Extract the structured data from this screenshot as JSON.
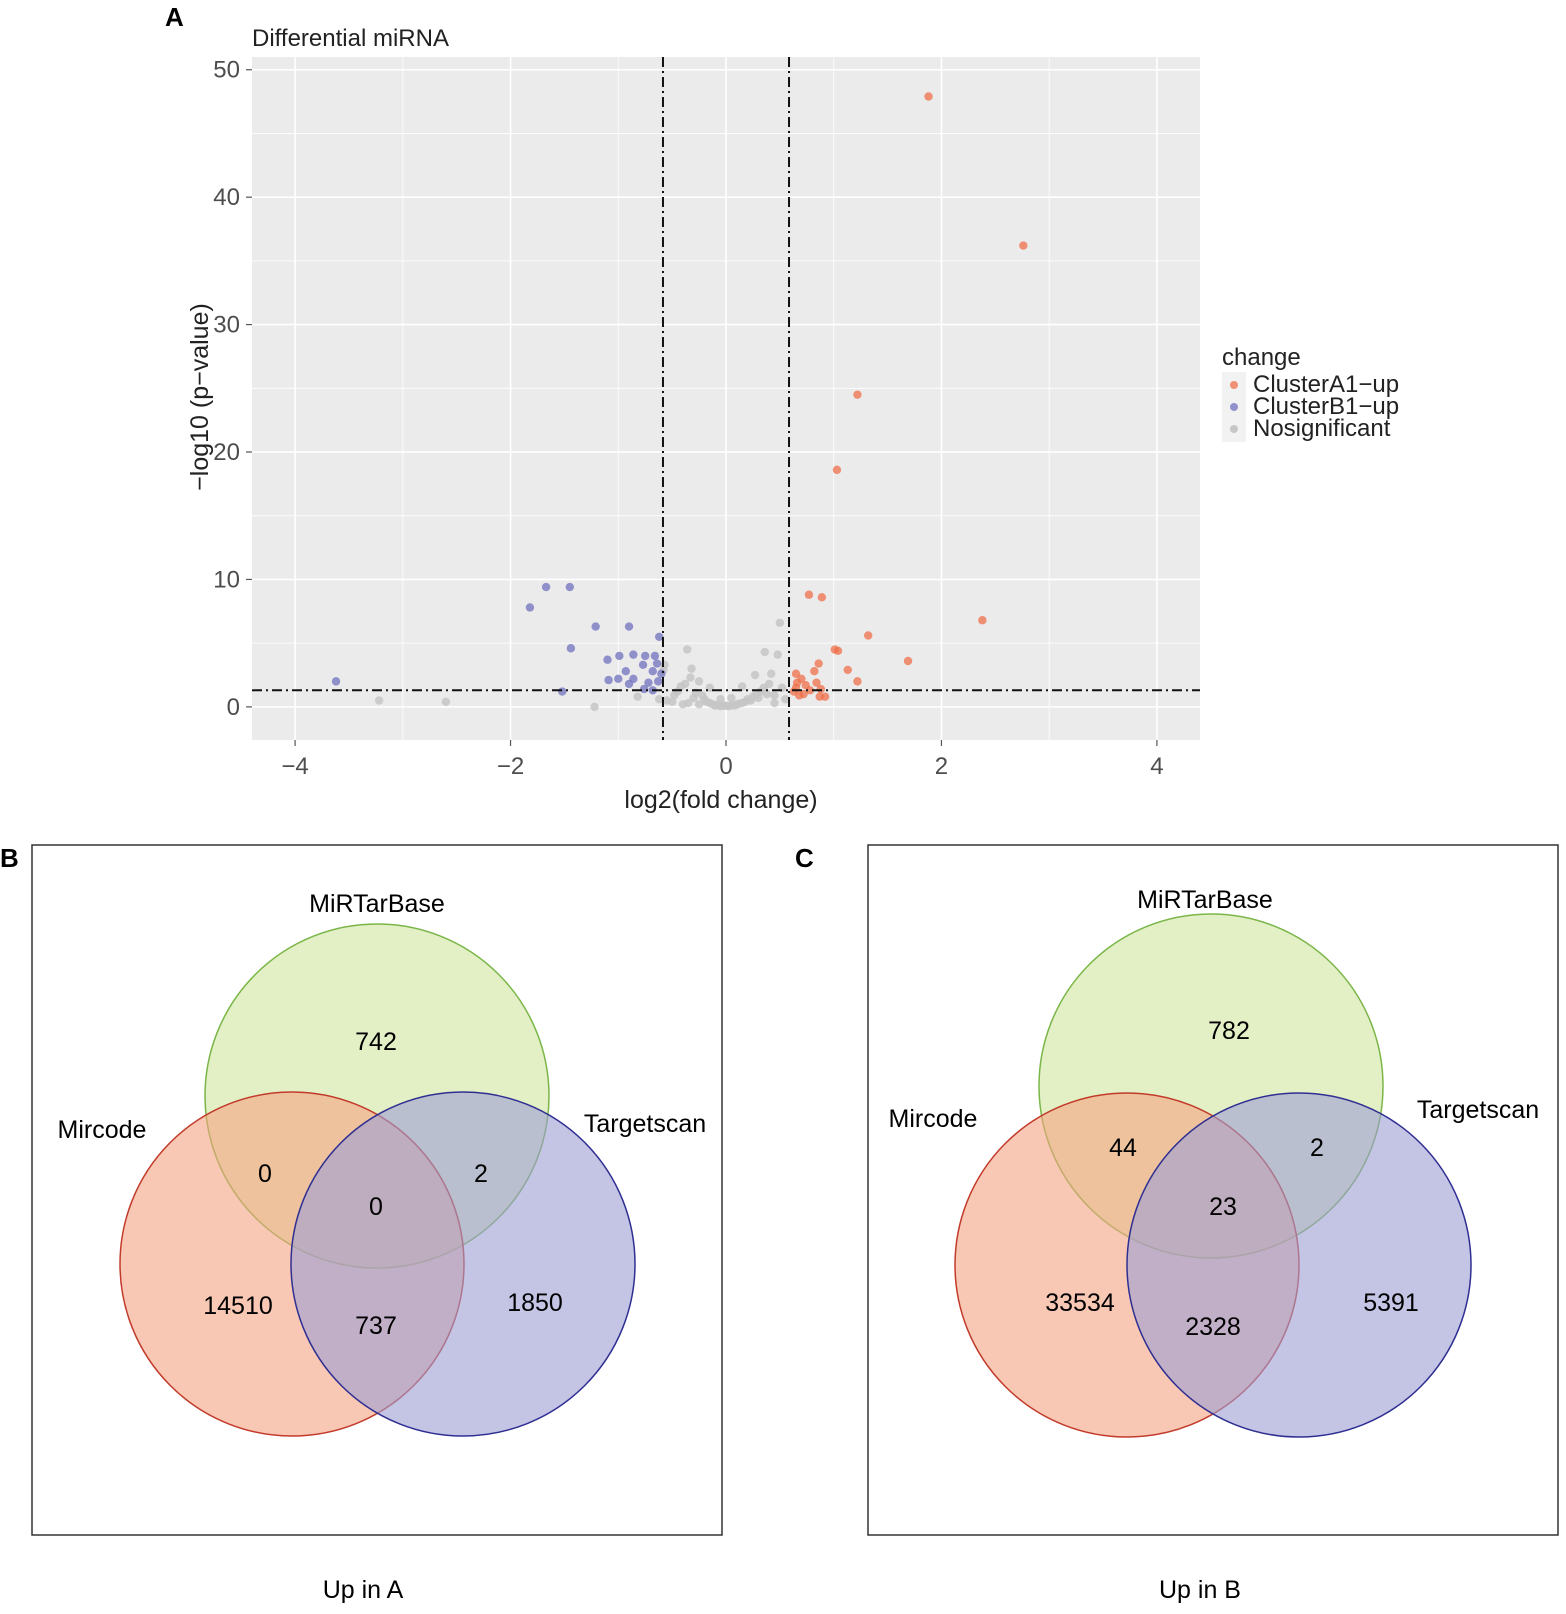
{
  "panels": {
    "A": {
      "label": "A"
    },
    "B": {
      "label": "B"
    },
    "C": {
      "label": "C"
    }
  },
  "colors": {
    "clusterA1": "#ef6f4a",
    "clusterB1": "#7072bf",
    "nosig": "#c6c6c6",
    "panel_bg": "#ebebeb",
    "grid": "#ffffff",
    "venn_mircode_fill": "#f3a382",
    "venn_mircode_stroke": "#c23b2a",
    "venn_mirtarbase_fill": "#d4e6a6",
    "venn_mirtarbase_stroke": "#7ab648",
    "venn_targetscan_fill": "#9c9fd4",
    "venn_targetscan_stroke": "#2f2f92"
  },
  "chart_data": [
    {
      "type": "scatter",
      "title": "Differential miRNA",
      "xlabel": "log2(fold change)",
      "ylabel": "−log10 (p−value)",
      "xlim": [
        -4.4,
        4.4
      ],
      "ylim": [
        -2.6,
        51
      ],
      "xticks": [
        -4,
        -2,
        0,
        2,
        4
      ],
      "xtick_labels": [
        "−4",
        "−2",
        "0",
        "2",
        "4"
      ],
      "yticks": [
        0,
        10,
        20,
        30,
        40,
        50
      ],
      "ytick_labels": [
        "0",
        "10",
        "20",
        "30",
        "40",
        "50"
      ],
      "thresholds": {
        "vlines": [
          -0.585,
          0.585
        ],
        "hline": 1.3
      },
      "legend": {
        "title": "change",
        "position": "right",
        "entries": [
          "ClusterA1−up",
          "ClusterB1−up",
          "Nosignificant"
        ]
      },
      "series": [
        {
          "name": "ClusterA1−up",
          "color_key": "clusterA1",
          "points": [
            [
              1.88,
              47.9
            ],
            [
              2.76,
              36.2
            ],
            [
              1.22,
              24.5
            ],
            [
              1.03,
              18.6
            ],
            [
              2.38,
              6.8
            ],
            [
              1.32,
              5.6
            ],
            [
              0.77,
              8.8
            ],
            [
              0.89,
              8.6
            ],
            [
              1.01,
              4.5
            ],
            [
              1.04,
              4.4
            ],
            [
              1.69,
              3.6
            ],
            [
              0.86,
              3.4
            ],
            [
              0.82,
              2.8
            ],
            [
              1.13,
              2.9
            ],
            [
              1.22,
              2.0
            ],
            [
              0.65,
              2.6
            ],
            [
              0.7,
              2.2
            ],
            [
              0.66,
              1.9
            ],
            [
              0.74,
              1.7
            ],
            [
              0.84,
              1.9
            ],
            [
              0.78,
              1.3
            ],
            [
              0.88,
              1.4
            ],
            [
              0.63,
              1.2
            ],
            [
              0.68,
              0.9
            ],
            [
              0.72,
              1.0
            ],
            [
              0.87,
              0.8
            ],
            [
              0.92,
              0.8
            ],
            [
              0.65,
              1.5
            ]
          ]
        },
        {
          "name": "ClusterB1−up",
          "color_key": "clusterB1",
          "points": [
            [
              -1.67,
              9.4
            ],
            [
              -1.45,
              9.4
            ],
            [
              -1.82,
              7.8
            ],
            [
              -1.21,
              6.3
            ],
            [
              -0.9,
              6.3
            ],
            [
              -0.62,
              5.5
            ],
            [
              -1.44,
              4.6
            ],
            [
              -0.99,
              4.0
            ],
            [
              -0.86,
              4.1
            ],
            [
              -0.75,
              4.0
            ],
            [
              -0.66,
              4.0
            ],
            [
              -1.1,
              3.7
            ],
            [
              -0.64,
              3.4
            ],
            [
              -0.93,
              2.8
            ],
            [
              -0.77,
              3.3
            ],
            [
              -0.68,
              2.8
            ],
            [
              -1.0,
              2.2
            ],
            [
              -0.6,
              2.6
            ],
            [
              -1.09,
              2.1
            ],
            [
              -0.86,
              2.2
            ],
            [
              -0.72,
              1.9
            ],
            [
              -0.63,
              2.0
            ],
            [
              -0.9,
              1.8
            ],
            [
              -3.62,
              2.0
            ],
            [
              -1.52,
              1.2
            ],
            [
              -0.76,
              1.4
            ],
            [
              -0.68,
              1.3
            ]
          ]
        },
        {
          "name": "Nosignificant",
          "color_key": "nosig",
          "points": [
            [
              -3.22,
              0.5
            ],
            [
              -2.6,
              0.4
            ],
            [
              -1.22,
              0.0
            ],
            [
              -0.82,
              0.8
            ],
            [
              -0.62,
              0.6
            ],
            [
              -0.55,
              0.5
            ],
            [
              -0.5,
              0.4
            ],
            [
              -0.48,
              0.9
            ],
            [
              -0.45,
              1.2
            ],
            [
              -0.42,
              1.6
            ],
            [
              -0.38,
              1.8
            ],
            [
              -0.35,
              0.3
            ],
            [
              -0.33,
              2.3
            ],
            [
              -0.3,
              0.7
            ],
            [
              -0.28,
              1.1
            ],
            [
              -0.25,
              0.2
            ],
            [
              -0.22,
              0.9
            ],
            [
              -0.2,
              0.6
            ],
            [
              -0.18,
              0.4
            ],
            [
              -0.15,
              0.3
            ],
            [
              -0.12,
              0.2
            ],
            [
              -0.1,
              0.1
            ],
            [
              -0.08,
              0.15
            ],
            [
              -0.05,
              0.05
            ],
            [
              -0.02,
              0.1
            ],
            [
              0.0,
              0.08
            ],
            [
              0.03,
              0.05
            ],
            [
              0.05,
              0.12
            ],
            [
              0.08,
              0.1
            ],
            [
              0.1,
              0.2
            ],
            [
              0.12,
              0.25
            ],
            [
              0.15,
              0.3
            ],
            [
              0.18,
              0.4
            ],
            [
              0.2,
              0.6
            ],
            [
              0.23,
              0.5
            ],
            [
              0.25,
              0.8
            ],
            [
              0.28,
              1.0
            ],
            [
              0.3,
              0.7
            ],
            [
              0.32,
              1.2
            ],
            [
              0.35,
              1.5
            ],
            [
              0.38,
              1.0
            ],
            [
              0.4,
              1.8
            ],
            [
              0.42,
              2.6
            ],
            [
              0.45,
              0.9
            ],
            [
              0.48,
              4.1
            ],
            [
              0.5,
              6.6
            ],
            [
              0.52,
              1.5
            ],
            [
              0.55,
              0.6
            ],
            [
              -0.58,
              2.9
            ],
            [
              -0.36,
              4.5
            ],
            [
              -0.57,
              3.3
            ],
            [
              0.36,
              4.3
            ],
            [
              -0.32,
              3.0
            ],
            [
              -0.25,
              2.0
            ],
            [
              0.27,
              2.5
            ],
            [
              -0.4,
              0.2
            ],
            [
              0.45,
              0.3
            ],
            [
              -0.15,
              1.5
            ],
            [
              0.15,
              1.6
            ],
            [
              -0.05,
              0.6
            ],
            [
              0.05,
              0.7
            ]
          ]
        }
      ]
    },
    {
      "type": "venn",
      "panel": "B",
      "caption": "Up in A",
      "sets": [
        "MiRTarBase",
        "Mircode",
        "Targetscan"
      ],
      "regions": {
        "MiRTarBase_only": "742",
        "Mircode_MiRTarBase": "0",
        "MiRTarBase_Targetscan": "2",
        "all_three": "0",
        "Mircode_only": "14510",
        "Mircode_Targetscan": "737",
        "Targetscan_only": "1850"
      }
    },
    {
      "type": "venn",
      "panel": "C",
      "caption": "Up in B",
      "sets": [
        "MiRTarBase",
        "Mircode",
        "Targetscan"
      ],
      "regions": {
        "MiRTarBase_only": "782",
        "Mircode_MiRTarBase": "44",
        "MiRTarBase_Targetscan": "2",
        "all_three": "23",
        "Mircode_only": "33534",
        "Mircode_Targetscan": "2328",
        "Targetscan_only": "5391"
      }
    }
  ]
}
